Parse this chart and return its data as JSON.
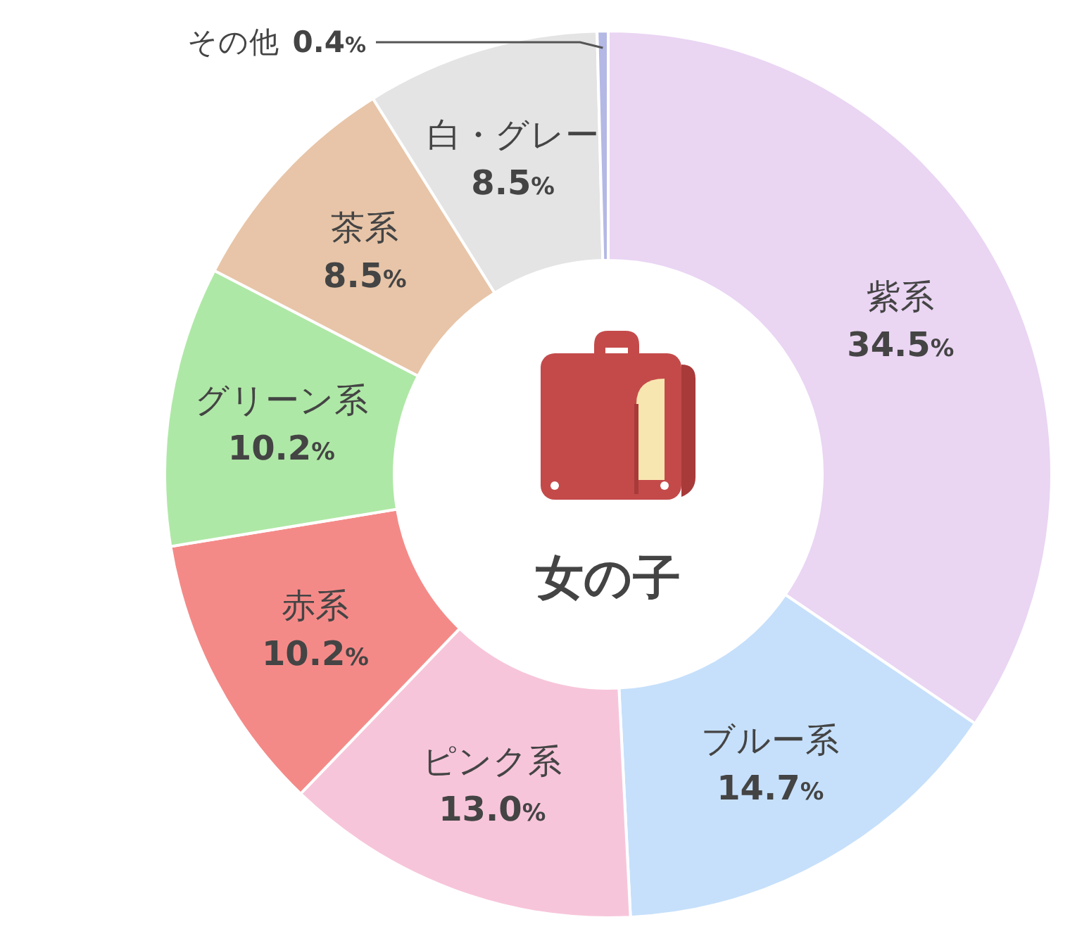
{
  "chart_data": {
    "type": "donut",
    "title": "女の子",
    "categories": [
      "紫系",
      "ブルー系",
      "ピンク系",
      "赤系",
      "グリーン系",
      "茶系",
      "白・グレー",
      "その他"
    ],
    "values": [
      34.5,
      14.7,
      13.0,
      10.2,
      10.2,
      8.5,
      8.5,
      0.4
    ],
    "value_labels": [
      "34.5%",
      "14.7%",
      "13.0%",
      "10.2%",
      "10.2%",
      "8.5%",
      "8.5%",
      "0.4%"
    ],
    "colors": [
      "#ead5f3",
      "#c6e0fb",
      "#f7c5da",
      "#f48a88",
      "#aee8a6",
      "#e8c5a8",
      "#e4e4e4",
      "#b4b8e4"
    ]
  }
}
